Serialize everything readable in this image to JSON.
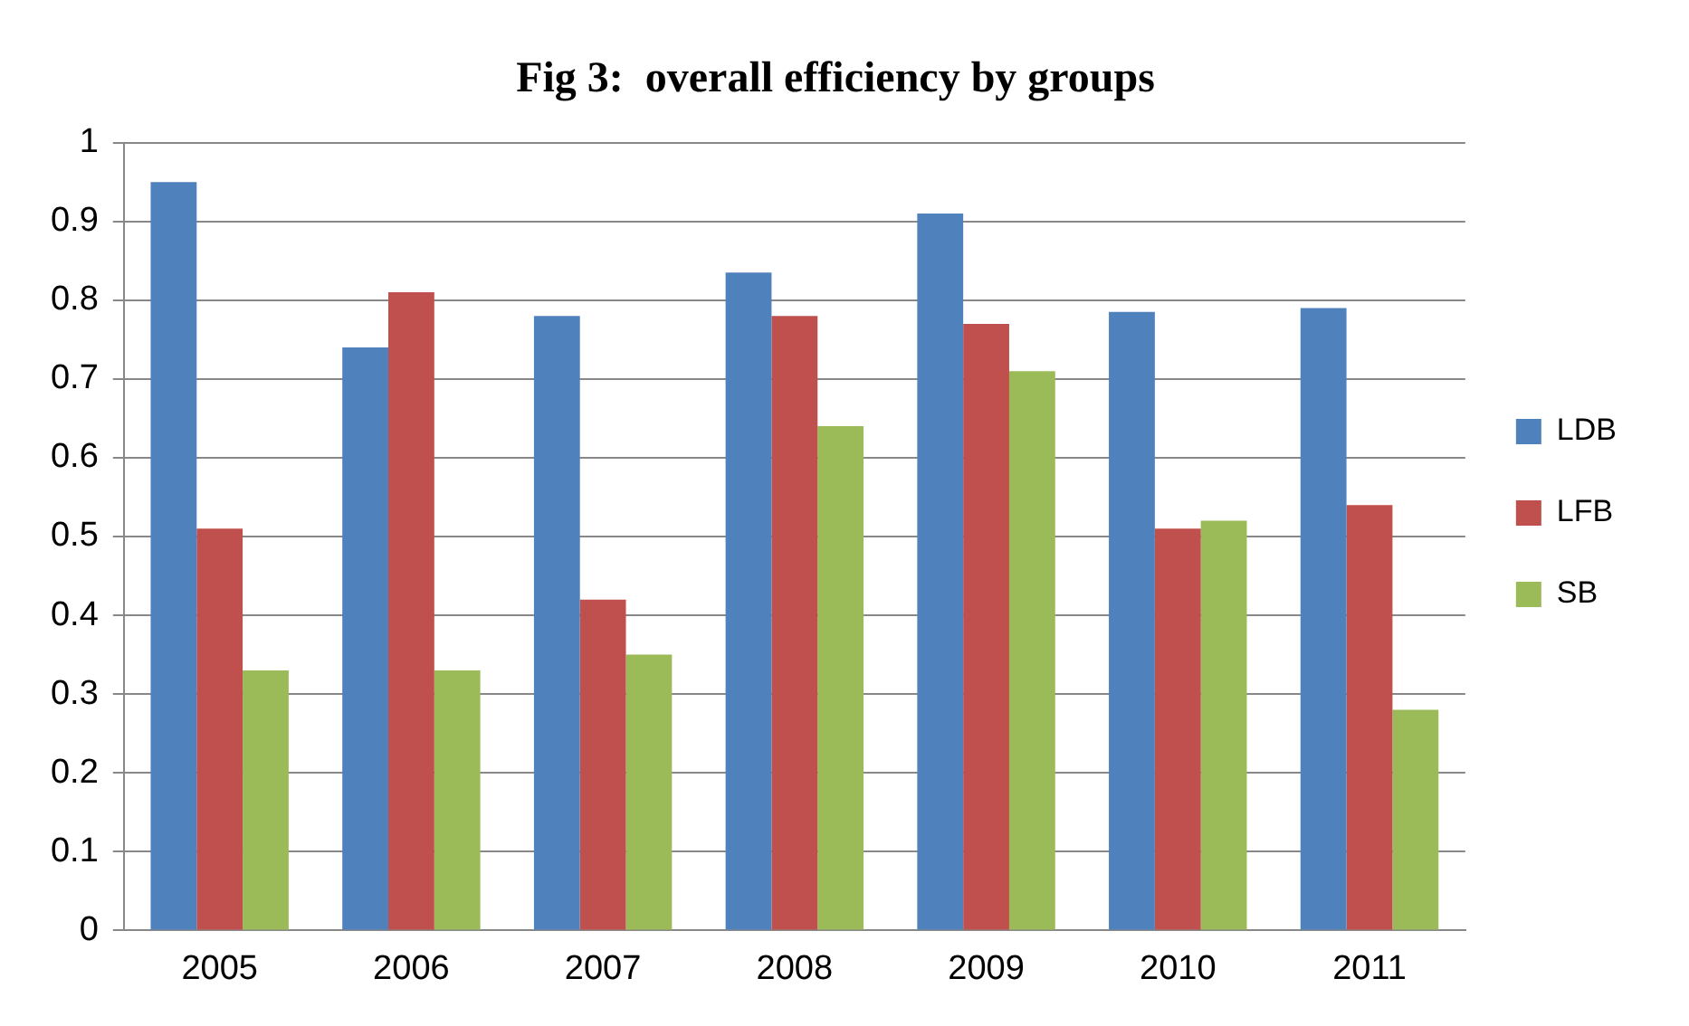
{
  "chart_data": {
    "type": "bar",
    "title": "Fig 3:  overall efficiency by groups",
    "categories": [
      "2005",
      "2006",
      "2007",
      "2008",
      "2009",
      "2010",
      "2011"
    ],
    "series": [
      {
        "name": "LDB",
        "color": "#4f81bd",
        "values": [
          0.95,
          0.74,
          0.78,
          0.835,
          0.91,
          0.785,
          0.79
        ]
      },
      {
        "name": "LFB",
        "color": "#c0504d",
        "values": [
          0.51,
          0.81,
          0.42,
          0.78,
          0.77,
          0.51,
          0.54
        ]
      },
      {
        "name": "SB",
        "color": "#9bbb59",
        "values": [
          0.33,
          0.33,
          0.35,
          0.64,
          0.71,
          0.52,
          0.28
        ]
      }
    ],
    "ylim": [
      0,
      1
    ],
    "yticks": [
      0,
      0.1,
      0.2,
      0.3,
      0.4,
      0.5,
      0.6,
      0.7,
      0.8,
      0.9,
      1
    ],
    "grid": "y",
    "legend": "right"
  }
}
